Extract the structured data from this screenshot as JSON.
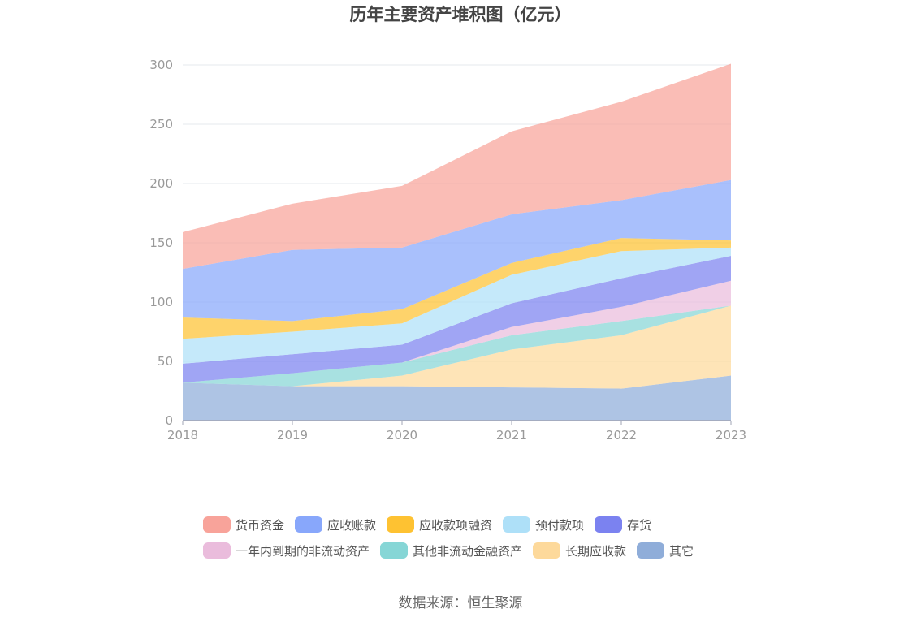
{
  "chart_data": {
    "type": "area",
    "stacked": true,
    "title": "历年主要资产堆积图（亿元）",
    "x": [
      "2018",
      "2019",
      "2020",
      "2021",
      "2022",
      "2023"
    ],
    "ylim": [
      0,
      300
    ],
    "yticks": [
      0,
      50,
      100,
      150,
      200,
      250,
      300
    ],
    "grid": true,
    "legend_position": "bottom",
    "series": [
      {
        "name": "其它",
        "color": "#8fadd9",
        "values": [
          32,
          29,
          29,
          28,
          27,
          38
        ]
      },
      {
        "name": "长期应收款",
        "color": "#fdd99b",
        "values": [
          0,
          0,
          9,
          32,
          45,
          59
        ]
      },
      {
        "name": "其他非流动金融资产",
        "color": "#86d6d6",
        "values": [
          0,
          11,
          11,
          12,
          12,
          0
        ]
      },
      {
        "name": "一年内到期的非流动资产",
        "color": "#eabcdc",
        "values": [
          0,
          0,
          0,
          7,
          12,
          21
        ]
      },
      {
        "name": "存货",
        "color": "#7b82f0",
        "values": [
          16,
          16,
          15,
          20,
          24,
          21
        ]
      },
      {
        "name": "预付款项",
        "color": "#aee0f8",
        "values": [
          21,
          19,
          18,
          24,
          23,
          7
        ]
      },
      {
        "name": "应收款项融资",
        "color": "#fec232",
        "values": [
          18,
          9,
          12,
          10,
          11,
          6
        ]
      },
      {
        "name": "应收账款",
        "color": "#88a7fb",
        "values": [
          41,
          60,
          52,
          41,
          32,
          51
        ]
      },
      {
        "name": "货币资金",
        "color": "#f8a39a",
        "values": [
          31,
          39,
          52,
          70,
          83,
          98
        ]
      }
    ]
  },
  "legend": {
    "row1": [
      "货币资金",
      "应收账款",
      "应收款项融资",
      "预付款项",
      "存货"
    ],
    "row2": [
      "一年内到期的非流动资产",
      "其他非流动金融资产",
      "长期应收款",
      "其它"
    ]
  },
  "source": "数据来源：恒生聚源"
}
